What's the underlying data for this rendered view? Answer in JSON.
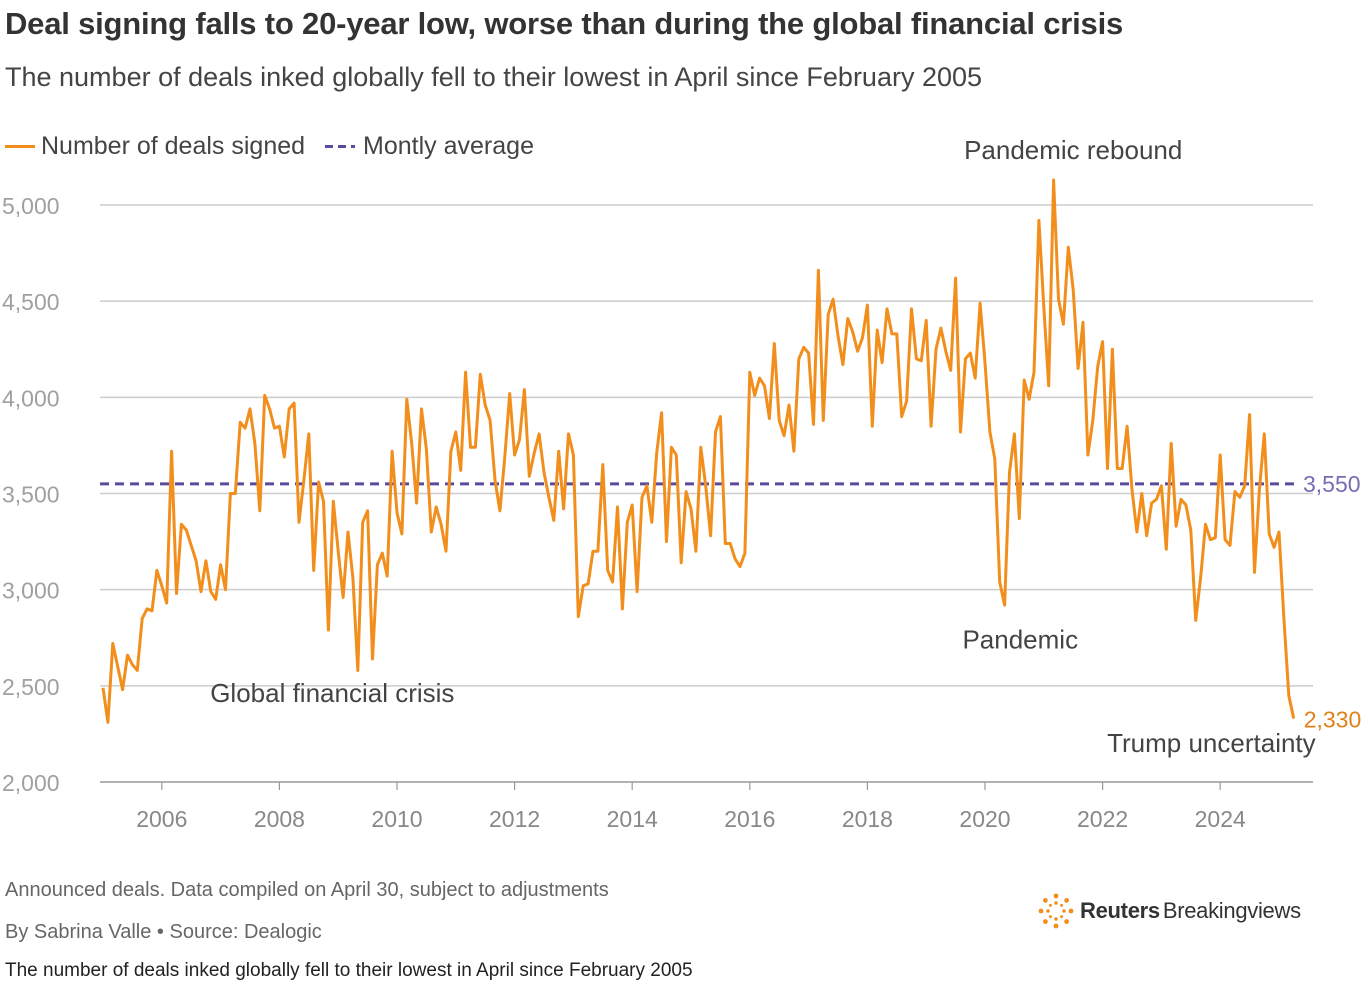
{
  "header": {
    "title": "Deal signing falls to 20-year low, worse than during the global financial crisis",
    "subtitle": "The number of deals inked globally fell to their lowest in April since February 2005"
  },
  "footer": {
    "note": "Announced deals. Data compiled on April 30, subject to adjustments",
    "byline": "By Sabrina Valle • Source: Dealogic",
    "caption": "The number of deals inked globally fell to their lowest in April since February 2005",
    "logo_brand": "Reuters",
    "logo_sub": "Breakingviews"
  },
  "colors": {
    "series": "#f28e1c",
    "average": "#5b4a9e",
    "grid": "#cccccc",
    "axis_text": "#888888",
    "annotation": "#444444"
  },
  "chart_data": {
    "type": "line",
    "grid": true,
    "legend_position": "top-left",
    "ylim": [
      2000,
      5000
    ],
    "yticks": [
      2000,
      2500,
      3000,
      3500,
      4000,
      4500,
      5000
    ],
    "ytick_labels": [
      "2,000",
      "2,500",
      "3,000",
      "3,500",
      "4,000",
      "4,500",
      "5,000"
    ],
    "xlim": [
      2005,
      2025.25
    ],
    "xticks": [
      2006,
      2008,
      2010,
      2012,
      2014,
      2016,
      2018,
      2020,
      2022,
      2024
    ],
    "xtick_labels": [
      "2006",
      "2008",
      "2010",
      "2012",
      "2014",
      "2016",
      "2018",
      "2020",
      "2022",
      "2024"
    ],
    "series": [
      {
        "name": "Number of deals signed",
        "start": "2005-01",
        "frequency": "monthly",
        "values": [
          2490,
          2310,
          2720,
          2600,
          2480,
          2660,
          2610,
          2580,
          2850,
          2900,
          2890,
          3100,
          3020,
          2930,
          3720,
          2980,
          3340,
          3310,
          3230,
          3150,
          2990,
          3150,
          2990,
          2950,
          3130,
          3000,
          3500,
          3500,
          3870,
          3840,
          3940,
          3760,
          3410,
          4010,
          3940,
          3840,
          3850,
          3690,
          3940,
          3970,
          3350,
          3570,
          3810,
          3100,
          3560,
          3460,
          2790,
          3460,
          3200,
          2960,
          3300,
          3060,
          2580,
          3350,
          3410,
          2640,
          3130,
          3190,
          3070,
          3720,
          3400,
          3290,
          3990,
          3760,
          3450,
          3940,
          3730,
          3300,
          3430,
          3340,
          3200,
          3720,
          3820,
          3620,
          4130,
          3740,
          3740,
          4120,
          3960,
          3880,
          3570,
          3410,
          3690,
          4020,
          3700,
          3780,
          4040,
          3590,
          3710,
          3810,
          3610,
          3480,
          3360,
          3720,
          3420,
          3810,
          3700,
          2860,
          3020,
          3030,
          3200,
          3200,
          3650,
          3100,
          3040,
          3430,
          2900,
          3350,
          3440,
          2990,
          3480,
          3540,
          3350,
          3710,
          3920,
          3250,
          3740,
          3700,
          3140,
          3510,
          3420,
          3200,
          3740,
          3540,
          3280,
          3820,
          3900,
          3240,
          3240,
          3160,
          3120,
          3190,
          4130,
          4010,
          4100,
          4060,
          3890,
          4280,
          3880,
          3800,
          3960,
          3720,
          4200,
          4260,
          4230,
          3860,
          4660,
          3880,
          4430,
          4510,
          4320,
          4170,
          4410,
          4340,
          4240,
          4310,
          4480,
          3850,
          4350,
          4180,
          4460,
          4330,
          4330,
          3900,
          3980,
          4460,
          4200,
          4190,
          4400,
          3850,
          4250,
          4360,
          4240,
          4140,
          4620,
          3820,
          4200,
          4230,
          4100,
          4490,
          4180,
          3820,
          3680,
          3040,
          2920,
          3610,
          3810,
          3370,
          4090,
          3990,
          4130,
          4920,
          4470,
          4060,
          5130,
          4510,
          4380,
          4780,
          4560,
          4150,
          4390,
          3700,
          3880,
          4160,
          4290,
          3630,
          4250,
          3630,
          3630,
          3850,
          3520,
          3300,
          3500,
          3280,
          3450,
          3470,
          3540,
          3210,
          3760,
          3330,
          3470,
          3440,
          3310,
          2840,
          3060,
          3340,
          3260,
          3270,
          3700,
          3260,
          3230,
          3510,
          3480,
          3540,
          3910,
          3090,
          3520,
          3810,
          3290,
          3220,
          3300,
          2850,
          2450,
          2330
        ]
      },
      {
        "name": "Montly average",
        "constant": 3550,
        "label": "3,550"
      }
    ],
    "end_label": "2,330",
    "annotations": [
      {
        "text": "Global financial crisis",
        "x": 2008.9,
        "y": 2415
      },
      {
        "text": "Pandemic",
        "x": 2020.6,
        "y": 2695
      },
      {
        "text": "Pandemic rebound",
        "x": 2021.5,
        "y": 5240
      },
      {
        "text": "Trump uncertainty",
        "x": 2023.85,
        "y": 2155
      }
    ]
  }
}
